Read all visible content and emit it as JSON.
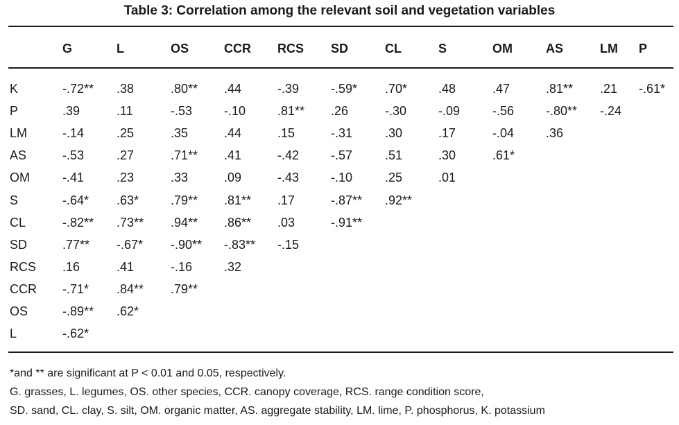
{
  "title": "Table 3: Correlation among the relevant soil and vegetation variables",
  "columns": [
    "G",
    "L",
    "OS",
    "CCR",
    "RCS",
    "SD",
    "CL",
    "S",
    "OM",
    "AS",
    "LM",
    "P"
  ],
  "rows": [
    {
      "label": "K",
      "values": [
        "-.72**",
        ".38",
        ".80**",
        ".44",
        "-.39",
        "-.59*",
        ".70*",
        ".48",
        ".47",
        ".81**",
        ".21",
        "-.61*"
      ]
    },
    {
      "label": "P",
      "values": [
        ".39",
        ".11",
        "-.53",
        "-.10",
        ".81**",
        ".26",
        "-.30",
        "-.09",
        "-.56",
        "-.80**",
        "-.24"
      ]
    },
    {
      "label": "LM",
      "values": [
        "-.14",
        ".25",
        ".35",
        ".44",
        ".15",
        "-.31",
        ".30",
        ".17",
        "-.04",
        ".36"
      ]
    },
    {
      "label": "AS",
      "values": [
        "-.53",
        ".27",
        ".71**",
        ".41",
        "-.42",
        "-.57",
        ".51",
        ".30",
        ".61*"
      ]
    },
    {
      "label": "OM",
      "values": [
        "-.41",
        ".23",
        ".33",
        ".09",
        "-.43",
        "-.10",
        ".25",
        ".01"
      ]
    },
    {
      "label": "S",
      "values": [
        "-.64*",
        ".63*",
        ".79**",
        ".81**",
        ".17",
        "-.87**",
        ".92**"
      ]
    },
    {
      "label": "CL",
      "values": [
        "-.82**",
        ".73**",
        ".94**",
        ".86**",
        ".03",
        "-.91**"
      ]
    },
    {
      "label": "SD",
      "values": [
        ".77**",
        "-.67*",
        "-.90**",
        "-.83**",
        "-.15"
      ]
    },
    {
      "label": "RCS",
      "values": [
        ".16",
        ".41",
        "-.16",
        ".32"
      ]
    },
    {
      "label": "CCR",
      "values": [
        "-.71*",
        ".84**",
        ".79**"
      ]
    },
    {
      "label": "OS",
      "values": [
        "-.89**",
        ".62*"
      ]
    },
    {
      "label": "L",
      "values": [
        "-.62*"
      ]
    }
  ],
  "footnotes": [
    "*and ** are significant at P < 0.01 and 0.05, respectively.",
    "G. grasses, L. legumes, OS. other species, CCR. canopy coverage, RCS. range condition score,",
    "SD. sand, CL. clay, S. silt, OM. organic matter, AS. aggregate stability, LM. lime, P. phosphorus, K. potassium"
  ]
}
